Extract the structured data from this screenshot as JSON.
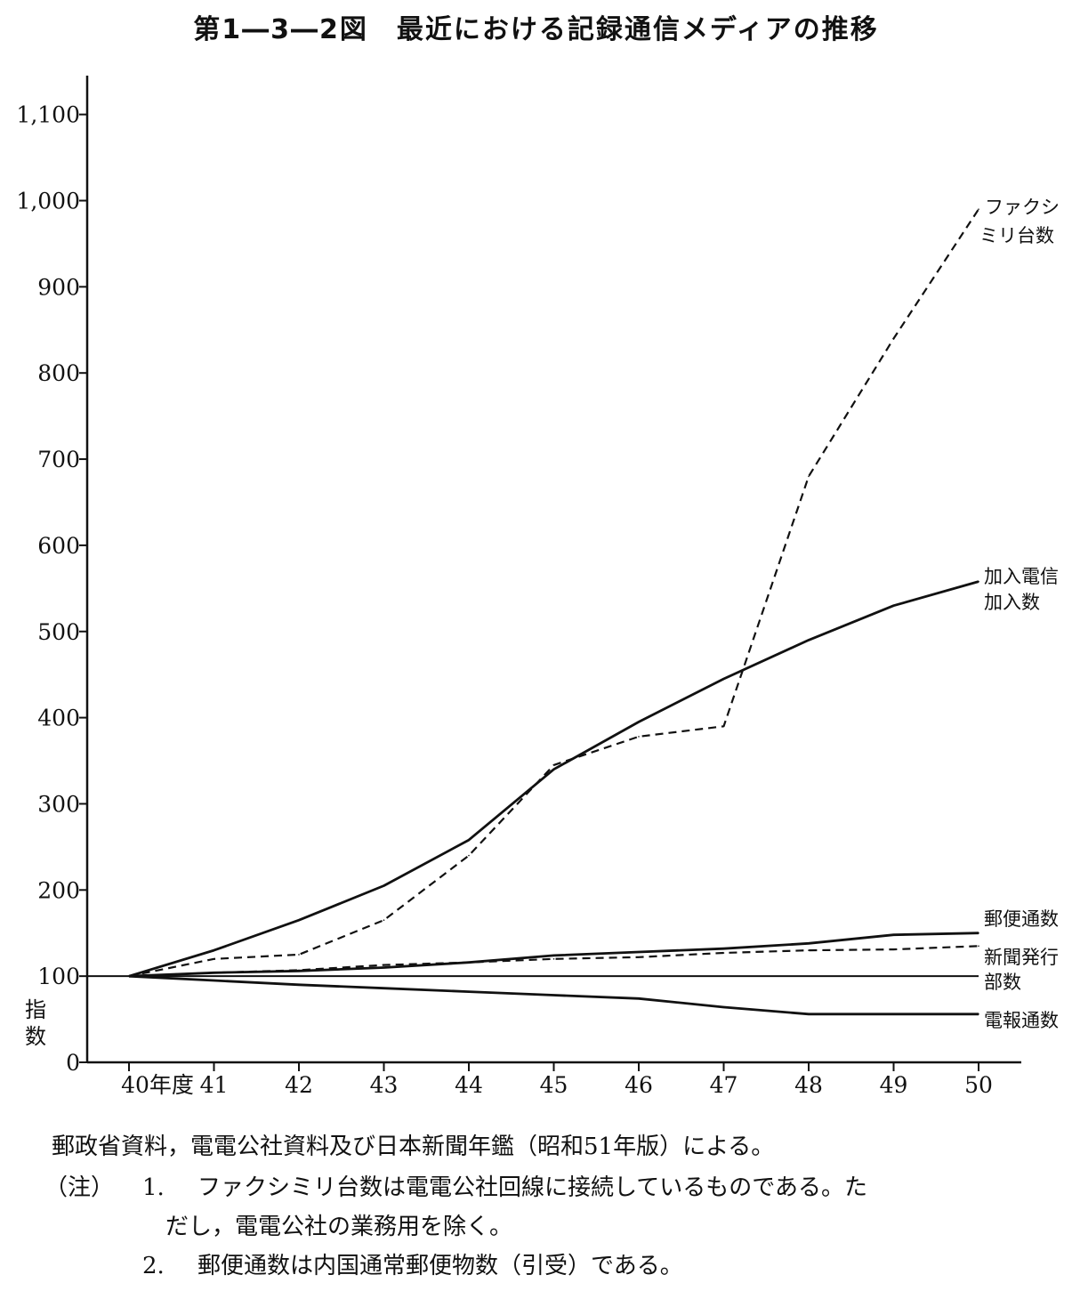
{
  "title": "第1―3―2図　最近における記録通信メディアの推移",
  "chart_data": {
    "type": "line",
    "title": "第1―3―2図　最近における記録通信メディアの推移",
    "xlabel": "",
    "ylabel": "指数",
    "x": [
      "40年度",
      "41",
      "42",
      "43",
      "44",
      "45",
      "46",
      "47",
      "48",
      "49",
      "50"
    ],
    "ylim": [
      0,
      1150
    ],
    "yticks": [
      "0",
      "100",
      "200",
      "300",
      "400",
      "500",
      "600",
      "700",
      "800",
      "900",
      "1,000",
      "1,100"
    ],
    "grid": false,
    "series": [
      {
        "name": "ファクシミリ台数",
        "style": "dashed",
        "values": [
          100,
          120,
          125,
          165,
          240,
          345,
          378,
          390,
          680,
          840,
          990
        ]
      },
      {
        "name": "加入電信加入数",
        "style": "solid",
        "values": [
          100,
          130,
          165,
          205,
          258,
          340,
          395,
          445,
          490,
          530,
          558
        ]
      },
      {
        "name": "郵便通数",
        "style": "solid",
        "values": [
          100,
          104,
          106,
          110,
          116,
          124,
          128,
          132,
          138,
          148,
          150
        ]
      },
      {
        "name": "新聞発行部数",
        "style": "dashed",
        "values": [
          100,
          104,
          107,
          113,
          116,
          120,
          122,
          127,
          130,
          131,
          135
        ]
      },
      {
        "name": "電報通数",
        "style": "solid",
        "values": [
          100,
          95,
          90,
          86,
          82,
          78,
          74,
          64,
          56,
          56,
          56
        ]
      }
    ],
    "reference_line": 100
  },
  "labels": {
    "fax_line1": "ファクシ",
    "fax_line2": "ミリ台数",
    "telex_line1": "加入電信",
    "telex_line2": "加入数",
    "mail": "郵便通数",
    "news_line1": "新聞発行",
    "news_line2": "部数",
    "telegram": "電報通数",
    "ylabel_char1": "指",
    "ylabel_char2": "数"
  },
  "notes": {
    "source": "郵政省資料，電電公社資料及び日本新聞年鑑（昭和51年版）による。",
    "note_head": "（注）",
    "note1_num": "1.",
    "note1_text": "ファクシミリ台数は電電公社回線に接続しているものである。た",
    "note1_cont": "だし，電電公社の業務用を除く。",
    "note2_num": "2.",
    "note2_text": "郵便通数は内国通常郵便物数（引受）である。"
  },
  "colors": {
    "ink": "#111111",
    "background": "#ffffff"
  }
}
